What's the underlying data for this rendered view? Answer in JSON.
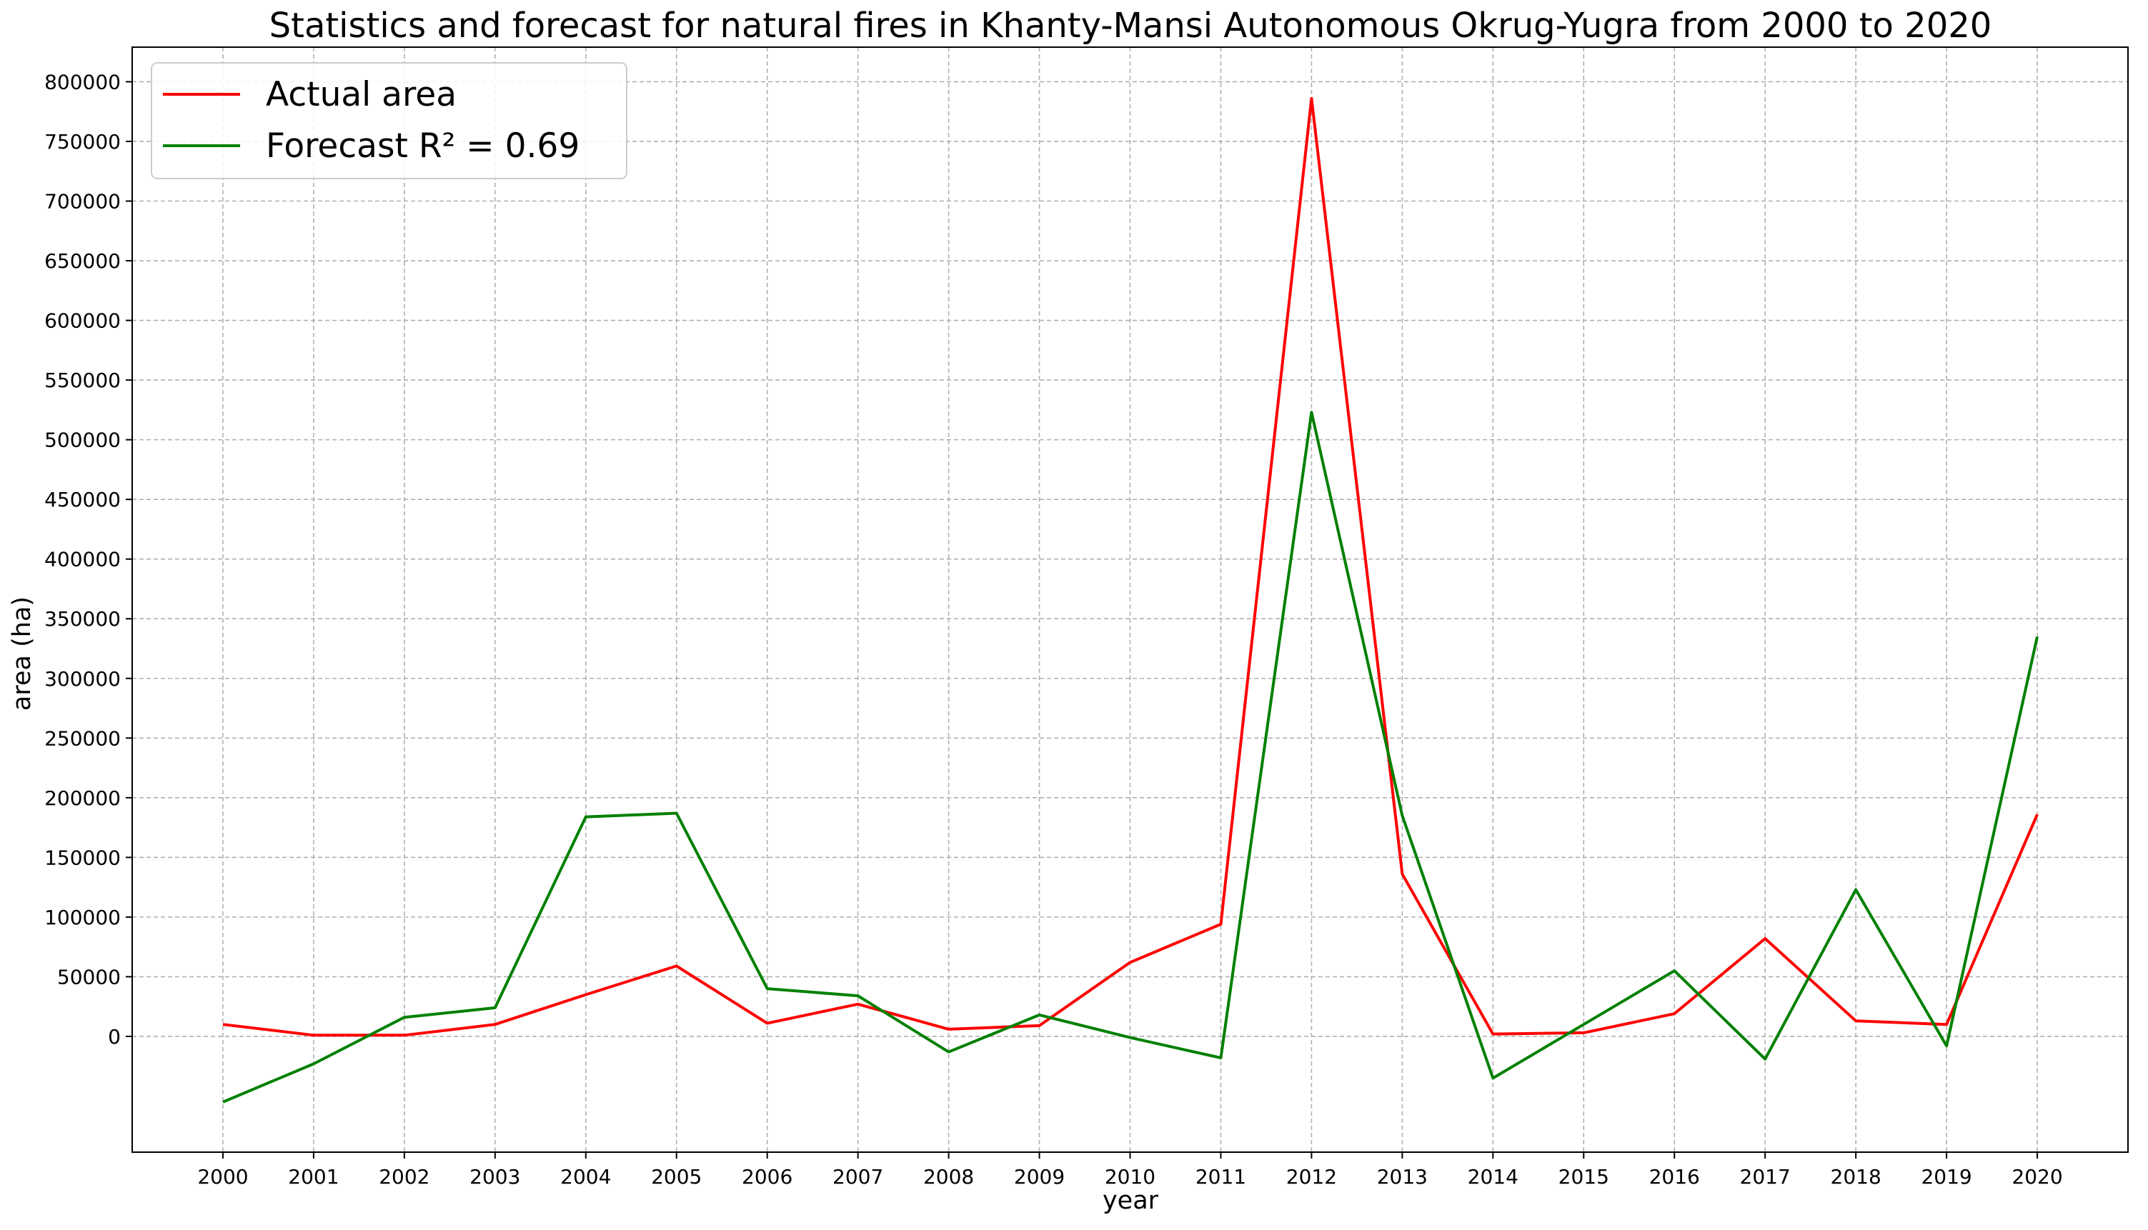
{
  "chart_data": {
    "type": "line",
    "title": "Statistics and forecast for natural fires in Khanty-Mansi Autonomous Okrug-Yugra from 2000 to 2020",
    "xlabel": "year",
    "ylabel": "area (ha)",
    "x": [
      2000,
      2001,
      2002,
      2003,
      2004,
      2005,
      2006,
      2007,
      2008,
      2009,
      2010,
      2011,
      2012,
      2013,
      2014,
      2015,
      2016,
      2017,
      2018,
      2019,
      2020
    ],
    "x_tick_labels": [
      "2000",
      "2001",
      "2002",
      "2003",
      "2004",
      "2005",
      "2006",
      "2007",
      "2008",
      "2009",
      "2010",
      "2011",
      "2012",
      "2013",
      "2014",
      "2015",
      "2016",
      "2017",
      "2018",
      "2019",
      "2020"
    ],
    "y_ticks": [
      0,
      50000,
      100000,
      150000,
      200000,
      250000,
      300000,
      350000,
      400000,
      450000,
      500000,
      550000,
      600000,
      650000,
      700000,
      750000,
      800000
    ],
    "y_tick_labels": [
      "0",
      "50000",
      "100000",
      "150000",
      "200000",
      "250000",
      "300000",
      "350000",
      "400000",
      "450000",
      "500000",
      "550000",
      "600000",
      "650000",
      "700000",
      "750000",
      "800000"
    ],
    "xlim": [
      1999,
      2021
    ],
    "ylim": [
      -97000,
      829000
    ],
    "grid": true,
    "legend_position": "top-left",
    "series": [
      {
        "name": "Actual area",
        "color": "#ff0000",
        "values": [
          10000,
          1000,
          1000,
          10000,
          35000,
          59000,
          11000,
          27000,
          6000,
          9000,
          62000,
          94000,
          786000,
          136000,
          2000,
          3000,
          19000,
          82000,
          13000,
          10000,
          186000
        ]
      },
      {
        "name": "Forecast  R² = 0.69",
        "color": "#008000",
        "values": [
          -55000,
          -23000,
          16000,
          24000,
          184000,
          187000,
          40000,
          34000,
          -13000,
          18000,
          -1000,
          -18000,
          523000,
          185000,
          -35000,
          10000,
          55000,
          -19000,
          123000,
          -8000,
          335000
        ]
      }
    ]
  }
}
